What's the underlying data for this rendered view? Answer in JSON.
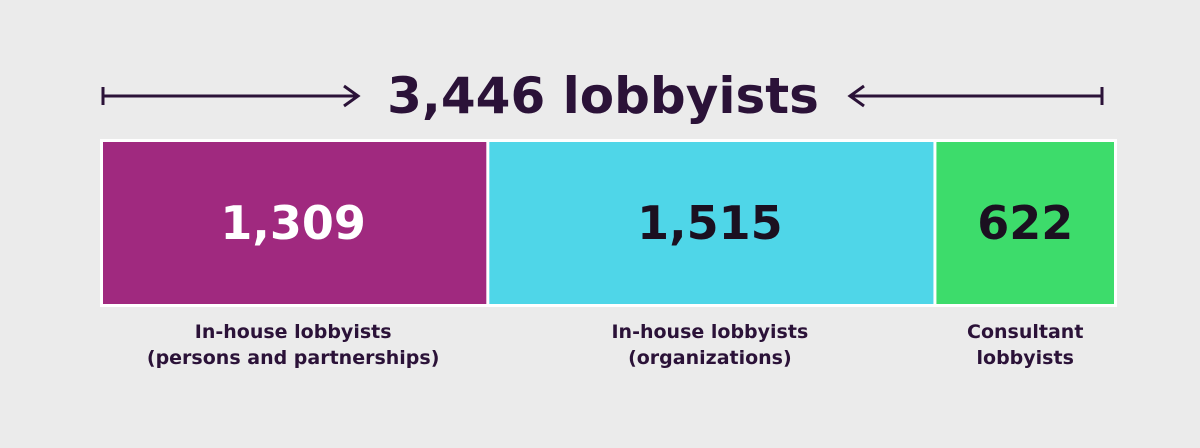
{
  "chart_data": {
    "type": "bar",
    "orientation": "stacked-horizontal",
    "title": "3,446 lobbyists",
    "total": 3446,
    "categories": [
      "In-house lobbyists (persons and partnerships)",
      "In-house lobbyists (organizations)",
      "Consultant lobbyists"
    ],
    "series": [
      {
        "values": [
          1309,
          1515,
          622
        ],
        "value_labels": [
          "1,309",
          "1,515",
          "622"
        ]
      }
    ],
    "label_lines": [
      [
        "In-house lobbyists",
        "(persons and partnerships)"
      ],
      [
        "In-house lobbyists",
        "(organizations)"
      ],
      [
        "Consultant",
        "lobbyists"
      ]
    ],
    "colors": [
      "#a0297f",
      "#4fd6e8",
      "#3ddc6b"
    ],
    "value_text_colors": [
      "#ffffff",
      "#1b1020",
      "#1b1020"
    ],
    "title_color": "#2b1238",
    "arrow_color": "#2b1238",
    "grid": false,
    "legend": "none"
  }
}
